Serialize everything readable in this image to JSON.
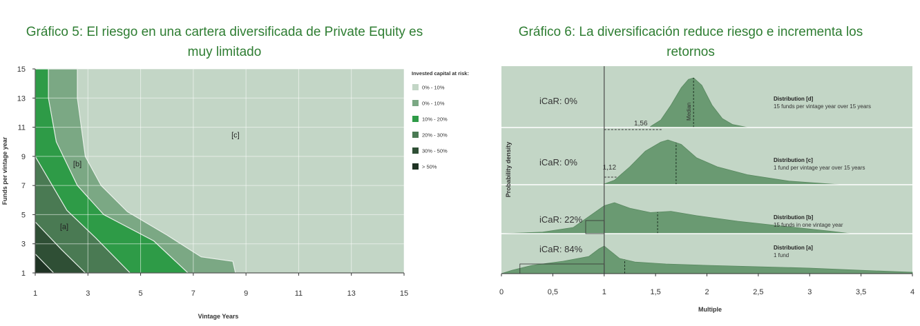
{
  "chart_data": [
    {
      "type": "area",
      "title": "Gráfico 5: El riesgo en una cartera diversificada de Private Equity es muy limitado",
      "xlabel": "Vintage Years",
      "ylabel": "Funds per vintage year",
      "xlim": [
        1,
        15
      ],
      "ylim": [
        1,
        15
      ],
      "xticks": [
        "1",
        "3",
        "5",
        "7",
        "9",
        "11",
        "13",
        "15"
      ],
      "yticks": [
        "1",
        "3",
        "5",
        "7",
        "9",
        "11",
        "13",
        "15"
      ],
      "grid": true,
      "legend_title": "Invested capital at risk:",
      "legend_position": "right",
      "region_labels": [
        {
          "text": "[a]",
          "x": 2.1,
          "y": 4.0
        },
        {
          "text": "[b]",
          "x": 2.6,
          "y": 8.3
        },
        {
          "text": "[c]",
          "x": 8.6,
          "y": 10.3
        }
      ],
      "series": [
        {
          "name": "0% - 10%",
          "color": "#c3d6c6",
          "boundary": [
            [
              1,
              15
            ],
            [
              15,
              15
            ],
            [
              15,
              1
            ],
            [
              1,
              1
            ]
          ]
        },
        {
          "name": "0% - 10%",
          "color": "#7ba884",
          "boundary": [
            [
              1,
              15
            ],
            [
              2.6,
              15
            ],
            [
              2.6,
              13
            ],
            [
              2.9,
              9
            ],
            [
              3.5,
              7
            ],
            [
              4.5,
              5.2
            ],
            [
              6,
              3.6
            ],
            [
              7.3,
              2.1
            ],
            [
              8.5,
              1.8
            ],
            [
              8.6,
              1
            ],
            [
              1,
              1
            ]
          ]
        },
        {
          "name": "10% - 20%",
          "color": "#2e9b47",
          "boundary": [
            [
              1,
              15
            ],
            [
              1.5,
              15
            ],
            [
              1.5,
              13
            ],
            [
              1.8,
              10
            ],
            [
              2.6,
              7
            ],
            [
              3.6,
              5
            ],
            [
              5.5,
              3.2
            ],
            [
              6.8,
              1
            ],
            [
              1,
              1
            ]
          ]
        },
        {
          "name": "20% - 30%",
          "color": "#4a7a53",
          "boundary": [
            [
              1,
              15
            ],
            [
              1,
              9
            ],
            [
              2.2,
              5.3
            ],
            [
              3.3,
              3.4
            ],
            [
              4.6,
              1
            ],
            [
              1,
              1
            ]
          ]
        },
        {
          "name": "30% - 50%",
          "color": "#2f4f35",
          "boundary": [
            [
              1,
              4.5
            ],
            [
              2,
              2.6
            ],
            [
              2.9,
              1
            ],
            [
              1,
              1
            ]
          ]
        },
        {
          "name": "> 50%",
          "color": "#1f3324",
          "boundary": [
            [
              1,
              2.3
            ],
            [
              1.7,
              1
            ],
            [
              1,
              1
            ]
          ]
        }
      ]
    },
    {
      "type": "area",
      "title": "Gráfico 6: La diversificación reduce riesgo e incrementa los retornos",
      "xlabel": "Multiple",
      "ylabel": "Probability density",
      "xlim": [
        0,
        4
      ],
      "xticks": [
        "0",
        "0,5",
        "1",
        "1,5",
        "2",
        "2,5",
        "3",
        "3,5",
        "4"
      ],
      "series": [
        {
          "name": "Distribution [d]",
          "subtitle": "15 funds per vintage year over 15 years",
          "icar": "iCaR: 0%",
          "marker_value": "1,56",
          "median": 1.87,
          "median_label": "Median",
          "x": [
            1.45,
            1.55,
            1.65,
            1.75,
            1.82,
            1.87,
            1.95,
            2.05,
            2.15,
            2.25,
            2.4
          ],
          "y": [
            0.02,
            0.15,
            0.45,
            0.8,
            0.97,
            1.0,
            0.85,
            0.45,
            0.18,
            0.06,
            0.0
          ]
        },
        {
          "name": "Distribution [c]",
          "subtitle": "1 fund per vintage year over 15 years",
          "icar": "iCaR: 0%",
          "marker_value": "1,12",
          "median": 1.7,
          "x": [
            0.98,
            1.1,
            1.25,
            1.4,
            1.55,
            1.62,
            1.75,
            1.9,
            2.1,
            2.4,
            2.8,
            3.3
          ],
          "y": [
            0.0,
            0.1,
            0.4,
            0.75,
            0.95,
            1.0,
            0.9,
            0.6,
            0.4,
            0.22,
            0.08,
            0.0
          ]
        },
        {
          "name": "Distribution [b]",
          "subtitle": "15 funds in one vintage year",
          "icar": "iCaR: 22%",
          "median": 1.52,
          "x": [
            0.0,
            0.4,
            0.7,
            0.85,
            1.0,
            1.1,
            1.25,
            1.45,
            1.65,
            1.9,
            2.3,
            2.8,
            3.2,
            3.4
          ],
          "y": [
            0.0,
            0.05,
            0.2,
            0.55,
            0.9,
            1.0,
            0.82,
            0.68,
            0.72,
            0.58,
            0.4,
            0.22,
            0.08,
            0.0
          ]
        },
        {
          "name": "Distribution [a]",
          "subtitle": "1 fund",
          "icar": "iCaR: 84%",
          "median": 1.2,
          "x": [
            0.0,
            0.1,
            0.3,
            0.6,
            0.85,
            0.95,
            1.0,
            1.05,
            1.15,
            1.3,
            1.6,
            2.0,
            2.5,
            3.0,
            3.5,
            4.0
          ],
          "y": [
            0.0,
            0.12,
            0.3,
            0.45,
            0.62,
            0.9,
            1.0,
            0.85,
            0.55,
            0.42,
            0.35,
            0.3,
            0.25,
            0.2,
            0.12,
            0.05
          ]
        }
      ]
    }
  ]
}
